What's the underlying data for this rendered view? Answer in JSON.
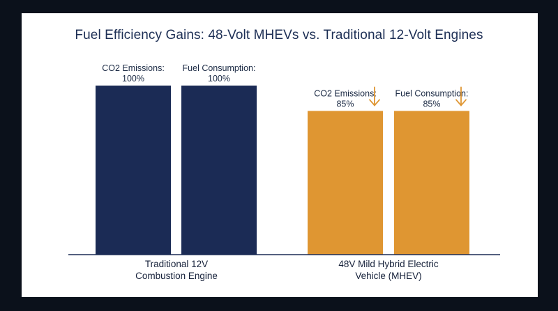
{
  "chart_data": {
    "type": "bar",
    "title": "Fuel Efficiency Gains: 48-Volt MHEVs vs. Traditional 12-Volt Engines",
    "xlabel": "",
    "ylabel": "",
    "ylim": [
      0,
      100
    ],
    "grid": false,
    "groups": [
      {
        "label_lines": [
          "Traditional 12V",
          "Combustion Engine"
        ],
        "color": "#1b2b55",
        "arrow": false,
        "bars": [
          {
            "label": "CO2 Emissions:",
            "value": 100,
            "value_label": "100%"
          },
          {
            "label": "Fuel Consumption:",
            "value": 100,
            "value_label": "100%"
          }
        ]
      },
      {
        "label_lines": [
          "48V Mild Hybrid Electric",
          "Vehicle (MHEV)"
        ],
        "color": "#df9632",
        "arrow": true,
        "bars": [
          {
            "label": "CO2 Emissions:",
            "value": 85,
            "value_label": "85%"
          },
          {
            "label": "Fuel Consumption:",
            "value": 85,
            "value_label": "85%"
          }
        ]
      }
    ],
    "arrow_color": "#df9632",
    "axis_color": "#1b2b55"
  }
}
